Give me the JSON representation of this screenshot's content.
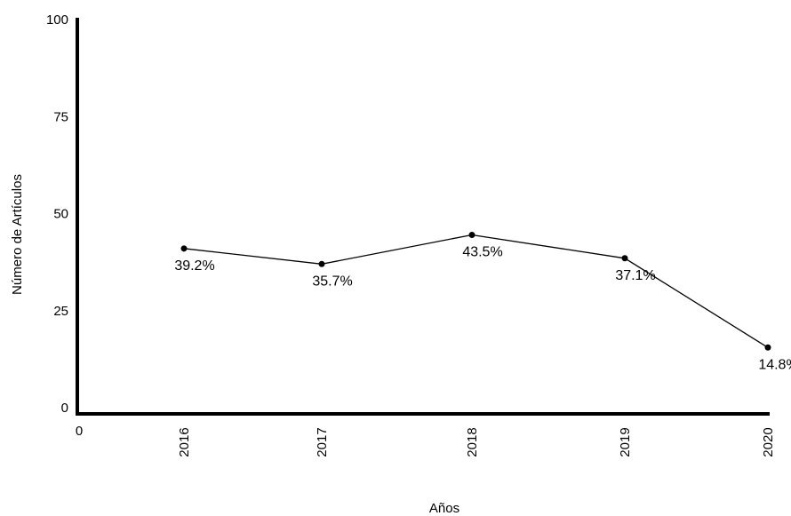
{
  "chart_data": {
    "type": "line",
    "title": "",
    "xlabel": "Años",
    "ylabel": "Número de Artículos",
    "x_origin_label": "0",
    "categories": [
      "2016",
      "2017",
      "2018",
      "2019",
      "2020"
    ],
    "values": [
      41,
      37,
      44.5,
      38.5,
      15.5
    ],
    "data_labels": [
      "39.2%",
      "35.7%",
      "43.5%",
      "37.1%",
      "14.8%"
    ],
    "ylim": [
      0,
      100
    ],
    "yticks": [
      "0",
      "25",
      "50",
      "75",
      "100"
    ],
    "grid": false,
    "legend": "none",
    "line_color": "#000000",
    "marker_color": "#000000"
  }
}
